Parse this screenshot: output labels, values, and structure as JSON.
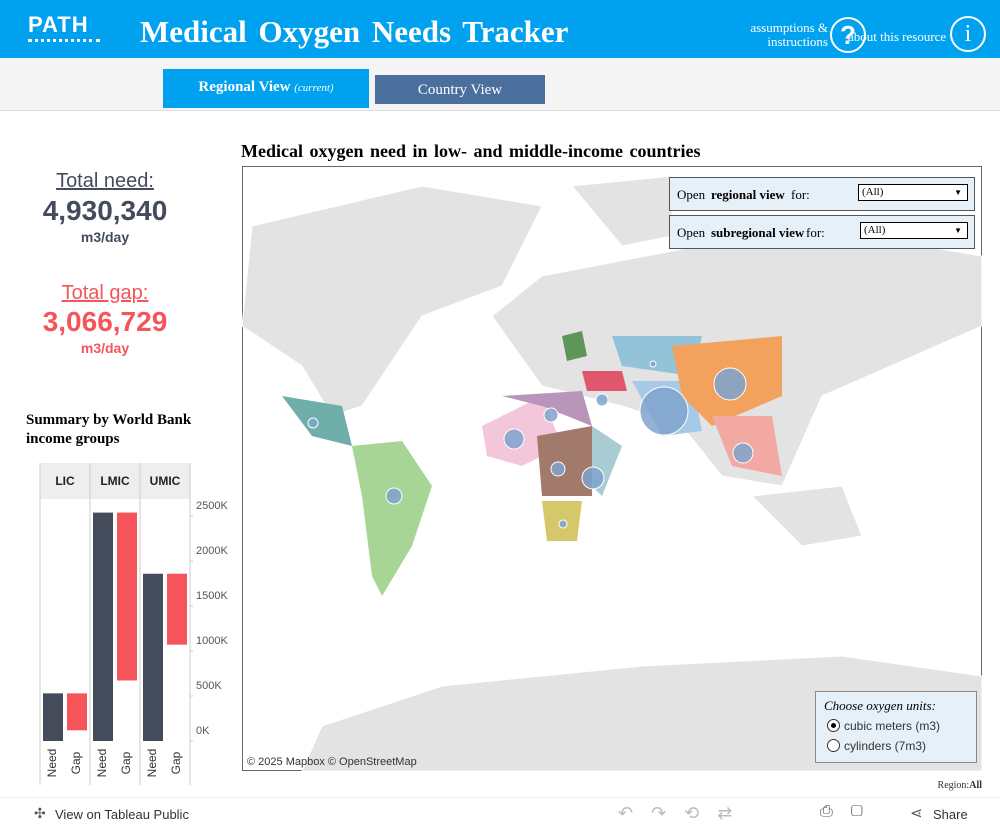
{
  "header": {
    "logo": "PATH",
    "title": "Medical Oxygen Needs Tracker",
    "assumptions": "assumptions & instructions",
    "about": "about this resource"
  },
  "tabs": {
    "regional": "Regional View",
    "regional_note": "(current)",
    "country": "Country View"
  },
  "kpis": {
    "need_label": "Total need:",
    "need_value": "4,930,340",
    "need_unit": "m3/day",
    "gap_label": "Total gap:",
    "gap_value": "3,066,729",
    "gap_unit": "m3/day"
  },
  "map": {
    "title": "Medical oxygen need in low- and middle-income countries",
    "filter_regional": {
      "prefix": "Open",
      "bold": "regional view",
      "suffix": "for:",
      "value": "(All)"
    },
    "filter_subregional": {
      "prefix": "Open",
      "bold": "subregional view",
      "suffix": "for:",
      "value": "(All)"
    },
    "units": {
      "title": "Choose oxygen units:",
      "options": [
        "cubic meters (m3)",
        "cylinders (7m3)"
      ]
    },
    "attribution": "© 2025 Mapbox  © OpenStreetMap",
    "legend_label": "Region:",
    "legend_value": "All"
  },
  "toolbar": {
    "view": "View on Tableau Public",
    "share": "Share"
  },
  "chart_data": {
    "type": "bar",
    "title": "Summary by World Bank income groups",
    "categories": [
      "LIC",
      "LMIC",
      "UMIC"
    ],
    "series": [
      {
        "name": "Need",
        "color": "#444c5c",
        "values": [
          530000,
          2540000,
          1860000
        ]
      },
      {
        "name": "Gap",
        "color": "#f5545b",
        "values": [
          411000,
          1867000,
          789000
        ]
      }
    ],
    "ylim": [
      0,
      2680000
    ],
    "yticks": [
      {
        "value": 0,
        "label": "0K"
      },
      {
        "value": 500000,
        "label": "500K"
      },
      {
        "value": 1000000,
        "label": "1000K"
      },
      {
        "value": 1500000,
        "label": "1500K"
      },
      {
        "value": 2000000,
        "label": "2000K"
      },
      {
        "value": 2500000,
        "label": "2500K"
      }
    ]
  }
}
